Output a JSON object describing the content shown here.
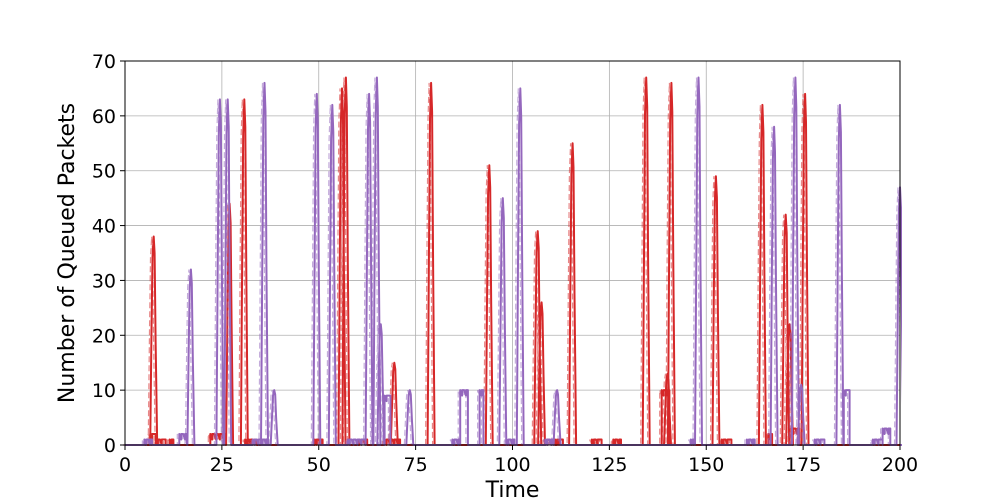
{
  "chart_data": {
    "type": "line",
    "title": "",
    "xlabel": "Time",
    "ylabel": "Number of Queued Packets",
    "xlim": [
      0,
      200
    ],
    "ylim": [
      0,
      70
    ],
    "xticks": [
      0,
      25,
      50,
      75,
      100,
      125,
      150,
      175,
      200
    ],
    "yticks": [
      0,
      10,
      20,
      30,
      40,
      50,
      60,
      70
    ],
    "grid": true,
    "legend": "none",
    "series": [
      {
        "color": "#d62728",
        "spikes": [
          [
            7.4,
            38
          ],
          [
            30.8,
            63
          ],
          [
            27.0,
            44
          ],
          [
            56.0,
            65
          ],
          [
            57.0,
            67
          ],
          [
            69.5,
            15
          ],
          [
            79.0,
            66
          ],
          [
            94.0,
            51
          ],
          [
            106.5,
            39
          ],
          [
            107.5,
            26
          ],
          [
            115.5,
            55
          ],
          [
            134.5,
            67
          ],
          [
            140.0,
            13
          ],
          [
            141.0,
            66
          ],
          [
            152.5,
            49
          ],
          [
            164.5,
            62
          ],
          [
            170.5,
            42
          ],
          [
            171.5,
            22
          ],
          [
            175.5,
            64
          ]
        ],
        "steps": [
          [
            [
              6.5,
              8.0
            ],
            2
          ],
          [
            [
              8.0,
              10.5
            ],
            1
          ],
          [
            [
              11.5,
              12.5
            ],
            1
          ],
          [
            [
              22.0,
              26.0
            ],
            2
          ],
          [
            [
              31.0,
              34.0
            ],
            1
          ],
          [
            [
              49.0,
              51.0
            ],
            1
          ],
          [
            [
              60.5,
              62.5
            ],
            1
          ],
          [
            [
              67.0,
              71.0
            ],
            1
          ],
          [
            [
              108.5,
              111.0
            ],
            1
          ],
          [
            [
              111.5,
              113.0
            ],
            1
          ],
          [
            [
              120.5,
              123.0
            ],
            1
          ],
          [
            [
              126.0,
              128.0
            ],
            1
          ],
          [
            [
              138.5,
              140.5
            ],
            10
          ],
          [
            [
              154.0,
              156.5
            ],
            1
          ],
          [
            [
              166.0,
              167.0
            ],
            2
          ],
          [
            [
              172.0,
              174.0
            ],
            3
          ]
        ]
      },
      {
        "color": "#9467bd",
        "spikes": [
          [
            17.0,
            32
          ],
          [
            24.5,
            63
          ],
          [
            26.5,
            63
          ],
          [
            36.0,
            66
          ],
          [
            38.5,
            10
          ],
          [
            49.5,
            64
          ],
          [
            53.5,
            62
          ],
          [
            63.0,
            64
          ],
          [
            65.0,
            67
          ],
          [
            66.0,
            22
          ],
          [
            73.5,
            10
          ],
          [
            97.5,
            45
          ],
          [
            102.0,
            65
          ],
          [
            111.5,
            10
          ],
          [
            148.0,
            67
          ],
          [
            167.5,
            58
          ],
          [
            173.0,
            67
          ],
          [
            174.5,
            11
          ],
          [
            184.5,
            62
          ],
          [
            200.0,
            47
          ]
        ],
        "steps": [
          [
            [
              5.0,
              7.0
            ],
            1
          ],
          [
            [
              14.0,
              16.0
            ],
            2
          ],
          [
            [
              33.0,
              37.0
            ],
            1
          ],
          [
            [
              57.5,
              62.0
            ],
            1
          ],
          [
            [
              67.0,
              68.5
            ],
            9
          ],
          [
            [
              84.5,
              86.5
            ],
            1
          ],
          [
            [
              86.5,
              88.5
            ],
            10
          ],
          [
            [
              91.5,
              92.5
            ],
            10
          ],
          [
            [
              98.5,
              100.5
            ],
            1
          ],
          [
            [
              108.5,
              110.5
            ],
            1
          ],
          [
            [
              146.0,
              147.0
            ],
            1
          ],
          [
            [
              160.5,
              162.5
            ],
            1
          ],
          [
            [
              178.0,
              180.5
            ],
            1
          ],
          [
            [
              185.5,
              187.0
            ],
            10
          ],
          [
            [
              193.0,
              195.5
            ],
            1
          ],
          [
            [
              195.5,
              197.5
            ],
            3
          ]
        ]
      }
    ]
  }
}
